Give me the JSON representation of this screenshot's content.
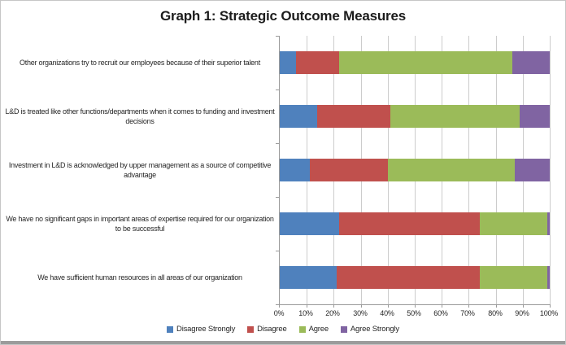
{
  "title": "Graph 1: Strategic Outcome Measures",
  "chart_data": {
    "type": "bar",
    "orientation": "horizontal",
    "stacked": true,
    "title": "Graph 1: Strategic Outcome Measures",
    "categories": [
      "Other organizations try to recruit our employees because of their superior talent",
      "L&D is treated like other functions/departments when it comes to funding and investment decisions",
      "Investment in L&D is acknowledged by upper management as a source of competitive advantage",
      "We have no significant gaps in important areas of expertise required for our organization to be successful",
      "We have sufficient human resources in all areas of our organization"
    ],
    "series": [
      {
        "name": "Disagree Strongly",
        "color": "#4F81BD",
        "values": [
          6,
          14,
          11,
          22,
          21
        ]
      },
      {
        "name": "Disagree",
        "color": "#C0504D",
        "values": [
          16,
          27,
          29,
          52,
          53
        ]
      },
      {
        "name": "Agree",
        "color": "#9BBB59",
        "values": [
          64,
          48,
          47,
          25,
          25
        ]
      },
      {
        "name": "Agree Strongly",
        "color": "#8064A2",
        "values": [
          14,
          11,
          13,
          1,
          1
        ]
      }
    ],
    "xlabel": "",
    "ylabel": "",
    "x_axis": {
      "min": 0,
      "max": 100,
      "tick_step": 10,
      "tick_labels": [
        "0%",
        "10%",
        "20%",
        "30%",
        "40%",
        "50%",
        "60%",
        "70%",
        "80%",
        "90%",
        "100%"
      ]
    },
    "values_unit": "%",
    "grid": true,
    "legend_position": "bottom",
    "legend_entries": [
      "Disagree Strongly",
      "Disagree",
      "Agree",
      "Agree Strongly"
    ],
    "colors": {
      "gridline": "#cccccc",
      "axis_line": "#9a9a9a",
      "text": "#262626",
      "title_text": "#1c1c1c",
      "background": "#ffffff"
    }
  }
}
